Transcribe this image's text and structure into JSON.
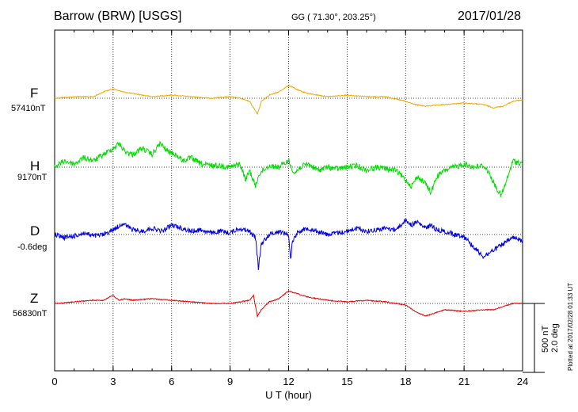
{
  "header": {
    "station": "Barrow (BRW)  [USGS]",
    "coords": "GG ( 71.30°, 203.25°)",
    "date": "2017/01/28"
  },
  "scale_bar": {
    "nt_label": "500 nT",
    "deg_label": "2.0 deg"
  },
  "plotted_note": "Plotted at 2017/02/28 01:33 UT",
  "colors": {
    "F": "#f5a800",
    "H": "#00dd00",
    "D": "#0000e6",
    "Z": "#e60000",
    "axes": "#000000"
  },
  "chart_data": {
    "type": "line",
    "xlabel": "U T (hour)",
    "xlim": [
      0,
      24
    ],
    "xticks": [
      "0",
      "3",
      "6",
      "9",
      "12",
      "15",
      "18",
      "21",
      "24"
    ],
    "grid": "dotted vertical every 3 h, dotted horizontal at each baseline",
    "series": [
      {
        "name": "F",
        "baseline_label": "57410nT",
        "x": [
          0,
          1,
          2,
          2.5,
          3,
          3.5,
          4,
          5,
          6,
          7,
          8,
          9,
          9.5,
          10,
          10.3,
          10.4,
          10.6,
          11,
          11.5,
          12,
          12.2,
          12.5,
          13,
          14,
          15,
          16,
          17,
          18,
          18.5,
          19,
          20,
          21,
          22,
          22.5,
          23,
          23.5,
          24
        ],
        "values": [
          0,
          5,
          5,
          20,
          30,
          20,
          15,
          5,
          10,
          5,
          0,
          5,
          0,
          -10,
          -40,
          -50,
          -10,
          10,
          20,
          40,
          35,
          25,
          15,
          5,
          10,
          5,
          5,
          -10,
          -20,
          -25,
          -20,
          -15,
          -20,
          -30,
          -25,
          -10,
          -5
        ]
      },
      {
        "name": "H",
        "baseline_label": "9170nT",
        "x": [
          0,
          0.5,
          1,
          1.5,
          2,
          2.5,
          3,
          3.3,
          3.6,
          4,
          4.5,
          5,
          5.4,
          5.8,
          6.2,
          6.6,
          7,
          7.5,
          8,
          8.5,
          9,
          9.5,
          9.8,
          10,
          10.3,
          10.5,
          11,
          11.5,
          12,
          12.3,
          12.6,
          13,
          13.5,
          14,
          14.5,
          15,
          15.5,
          16,
          16.5,
          17,
          17.5,
          18,
          18.3,
          18.6,
          19,
          19.3,
          19.6,
          20,
          20.5,
          21,
          21.5,
          22,
          22.3,
          22.6,
          22.9,
          23.2,
          23.5,
          24
        ],
        "values": [
          0,
          20,
          10,
          30,
          20,
          40,
          60,
          75,
          50,
          40,
          60,
          40,
          75,
          50,
          40,
          20,
          30,
          10,
          5,
          5,
          0,
          10,
          -40,
          -10,
          -60,
          -20,
          5,
          0,
          20,
          -20,
          0,
          10,
          -10,
          0,
          -5,
          0,
          5,
          -10,
          0,
          -5,
          -10,
          -40,
          -60,
          -30,
          -50,
          -80,
          -30,
          -10,
          0,
          10,
          0,
          5,
          -20,
          -60,
          -90,
          -40,
          20,
          10
        ]
      },
      {
        "name": "D",
        "baseline_label": "-0.6deg",
        "x": [
          0,
          0.5,
          1,
          1.5,
          2,
          2.5,
          3,
          3.5,
          4,
          4.5,
          5,
          5.5,
          6,
          6.5,
          7,
          7.5,
          8,
          8.5,
          9,
          9.5,
          10,
          10.3,
          10.45,
          10.6,
          11,
          11.5,
          12,
          12.1,
          12.2,
          12.5,
          13,
          13.5,
          14,
          14.5,
          15,
          15.5,
          16,
          16.5,
          17,
          17.5,
          18,
          18.3,
          18.6,
          19,
          19.3,
          19.6,
          20,
          20.5,
          21,
          21.5,
          22,
          22.5,
          23,
          23.5,
          24
        ],
        "values": [
          0,
          -10,
          -5,
          5,
          -5,
          0,
          15,
          35,
          15,
          10,
          20,
          10,
          30,
          20,
          10,
          15,
          5,
          10,
          5,
          20,
          10,
          -10,
          -105,
          -30,
          0,
          10,
          0,
          -80,
          -20,
          10,
          20,
          10,
          0,
          5,
          10,
          20,
          10,
          15,
          20,
          15,
          45,
          30,
          40,
          20,
          30,
          15,
          10,
          0,
          -5,
          -40,
          -70,
          -50,
          -30,
          -10,
          -20
        ]
      },
      {
        "name": "Z",
        "baseline_label": "56830nT",
        "x": [
          0,
          1,
          2,
          2.5,
          2.8,
          3,
          3.3,
          3.6,
          4,
          5,
          6,
          7,
          8,
          9,
          9.5,
          10,
          10.2,
          10.4,
          10.6,
          11,
          11.5,
          12,
          12.2,
          12.5,
          13,
          14,
          15,
          16,
          17,
          18,
          18.5,
          19,
          19.5,
          20,
          21,
          22,
          22.5,
          23,
          23.5,
          24
        ],
        "values": [
          0,
          5,
          10,
          10,
          20,
          25,
          10,
          15,
          10,
          15,
          10,
          5,
          0,
          0,
          5,
          10,
          25,
          -40,
          -20,
          5,
          15,
          40,
          35,
          30,
          20,
          10,
          5,
          10,
          5,
          -5,
          -25,
          -40,
          -30,
          -20,
          -25,
          -20,
          -20,
          -10,
          0,
          0
        ]
      }
    ]
  }
}
